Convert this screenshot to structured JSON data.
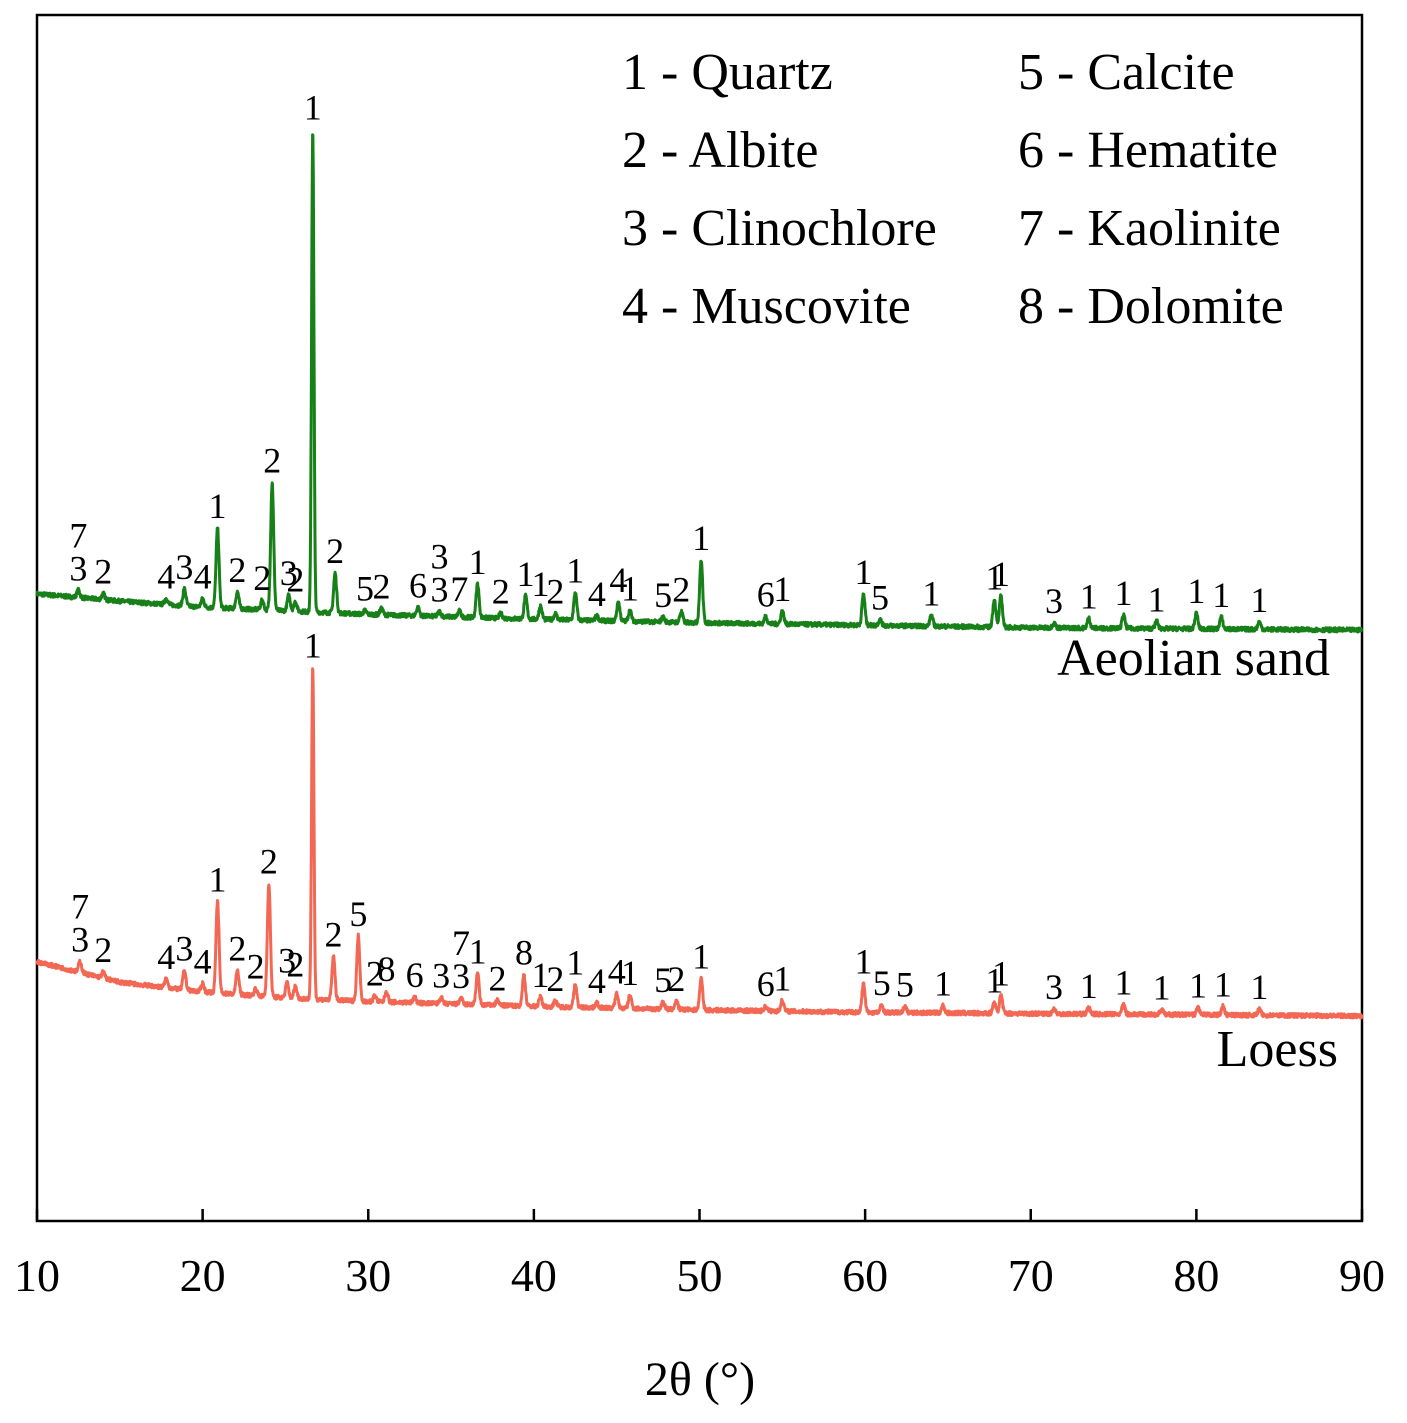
{
  "chart_data": {
    "type": "line",
    "title": "",
    "xlabel": "2θ (°)",
    "ylabel": "",
    "xlim": [
      10,
      90
    ],
    "ylim": [
      0,
      100
    ],
    "xticks": [
      {
        "value": 10,
        "label": "10"
      },
      {
        "value": 20,
        "label": "20"
      },
      {
        "value": 30,
        "label": "30"
      },
      {
        "value": 40,
        "label": "40"
      },
      {
        "value": 50,
        "label": "50"
      },
      {
        "value": 60,
        "label": "60"
      },
      {
        "value": 70,
        "label": "70"
      },
      {
        "value": 80,
        "label": "80"
      },
      {
        "value": 90,
        "label": "90"
      }
    ],
    "legend": {
      "placement": "top-right",
      "entries": [
        "1 - Quartz",
        "5 - Calcite",
        "2 - Albite",
        "6 - Hematite",
        "3 - Clinochlore",
        "7 - Kaolinite",
        "4 - Muscovite",
        "8 - Dolomite"
      ]
    },
    "series": [
      {
        "name": "Aeolian sand",
        "color": "#188018",
        "baseline": {
          "x": [
            10,
            15,
            20,
            25,
            30,
            40,
            50,
            60,
            70,
            80,
            90
          ],
          "y": [
            52,
            51.4,
            50.9,
            50.6,
            50.3,
            49.9,
            49.6,
            49.4,
            49.2,
            49.1,
            49
          ]
        },
        "peaks": [
          {
            "x": 12.5,
            "h": 0.6,
            "label": "7\n3"
          },
          {
            "x": 14.0,
            "h": 0.5,
            "label": "2"
          },
          {
            "x": 17.8,
            "h": 0.5,
            "label": "4"
          },
          {
            "x": 18.9,
            "h": 1.4,
            "label": "3"
          },
          {
            "x": 20.0,
            "h": 0.7,
            "label": "4"
          },
          {
            "x": 20.9,
            "h": 6.6,
            "label": "1"
          },
          {
            "x": 22.1,
            "h": 1.4,
            "label": "2"
          },
          {
            "x": 23.6,
            "h": 0.8,
            "label": "2"
          },
          {
            "x": 24.2,
            "h": 10.6,
            "label": "2"
          },
          {
            "x": 25.2,
            "h": 1.3,
            "label": "3"
          },
          {
            "x": 25.6,
            "h": 0.8,
            "label": "2"
          },
          {
            "x": 26.65,
            "h": 40,
            "label": "1"
          },
          {
            "x": 28.0,
            "h": 3.3,
            "label": "2"
          },
          {
            "x": 29.8,
            "h": 0.3,
            "label": "5"
          },
          {
            "x": 30.8,
            "h": 0.5,
            "label": "2"
          },
          {
            "x": 33.0,
            "h": 0.7,
            "label": "6"
          },
          {
            "x": 34.3,
            "h": 0.4,
            "label": "3\n3"
          },
          {
            "x": 35.5,
            "h": 0.5,
            "label": "7"
          },
          {
            "x": 36.6,
            "h": 2.8,
            "label": "1"
          },
          {
            "x": 38.0,
            "h": 0.4,
            "label": "2"
          },
          {
            "x": 39.5,
            "h": 1.9,
            "label": "1"
          },
          {
            "x": 40.4,
            "h": 1.1,
            "label": "1"
          },
          {
            "x": 41.3,
            "h": 0.5,
            "label": "2"
          },
          {
            "x": 42.5,
            "h": 2.3,
            "label": "1"
          },
          {
            "x": 43.8,
            "h": 0.4,
            "label": "4"
          },
          {
            "x": 45.1,
            "h": 1.6,
            "label": "4"
          },
          {
            "x": 45.8,
            "h": 0.9,
            "label": "1"
          },
          {
            "x": 47.8,
            "h": 0.4,
            "label": "5"
          },
          {
            "x": 48.9,
            "h": 0.9,
            "label": "2"
          },
          {
            "x": 50.1,
            "h": 5.2,
            "label": "1"
          },
          {
            "x": 54.0,
            "h": 0.6,
            "label": "6"
          },
          {
            "x": 55.0,
            "h": 1.1,
            "label": "1"
          },
          {
            "x": 59.9,
            "h": 2.6,
            "label": "1"
          },
          {
            "x": 60.9,
            "h": 0.5,
            "label": "5"
          },
          {
            "x": 64.0,
            "h": 0.9,
            "label": "1"
          },
          {
            "x": 67.8,
            "h": 2.3,
            "label": "1"
          },
          {
            "x": 68.2,
            "h": 2.6,
            "label": "1"
          },
          {
            "x": 71.4,
            "h": 0.4,
            "label": "3"
          },
          {
            "x": 73.5,
            "h": 0.8,
            "label": "1"
          },
          {
            "x": 75.6,
            "h": 1.1,
            "label": "1"
          },
          {
            "x": 77.6,
            "h": 0.6,
            "label": "1"
          },
          {
            "x": 80.0,
            "h": 1.3,
            "label": "1"
          },
          {
            "x": 81.5,
            "h": 1.0,
            "label": "1"
          },
          {
            "x": 83.8,
            "h": 0.6,
            "label": "1"
          }
        ]
      },
      {
        "name": "Loess",
        "color": "#f36854",
        "baseline": {
          "x": [
            10,
            15,
            20,
            25,
            30,
            40,
            50,
            60,
            70,
            80,
            90
          ],
          "y": [
            21.5,
            19.8,
            19.0,
            18.5,
            18.2,
            17.8,
            17.5,
            17.3,
            17.2,
            17.1,
            17.0
          ]
        },
        "peaks": [
          {
            "x": 12.6,
            "h": 0.9,
            "label": "7\n3"
          },
          {
            "x": 14.0,
            "h": 0.5,
            "label": "2"
          },
          {
            "x": 17.8,
            "h": 0.7,
            "label": "4"
          },
          {
            "x": 18.9,
            "h": 1.6,
            "label": "3"
          },
          {
            "x": 20.0,
            "h": 0.7,
            "label": "4"
          },
          {
            "x": 20.9,
            "h": 7.6,
            "label": "1"
          },
          {
            "x": 22.1,
            "h": 2.0,
            "label": "2"
          },
          {
            "x": 23.2,
            "h": 0.6,
            "label": "2"
          },
          {
            "x": 24.0,
            "h": 9.4,
            "label": "2"
          },
          {
            "x": 25.1,
            "h": 1.3,
            "label": "3"
          },
          {
            "x": 25.6,
            "h": 1.0,
            "label": "2"
          },
          {
            "x": 26.65,
            "h": 27.5,
            "label": "1"
          },
          {
            "x": 27.9,
            "h": 3.6,
            "label": "2"
          },
          {
            "x": 29.4,
            "h": 5.4,
            "label": "5"
          },
          {
            "x": 30.4,
            "h": 0.5,
            "label": "2"
          },
          {
            "x": 31.1,
            "h": 0.9,
            "label": "8"
          },
          {
            "x": 32.8,
            "h": 0.5,
            "label": "6"
          },
          {
            "x": 34.4,
            "h": 0.5,
            "label": "3"
          },
          {
            "x": 35.6,
            "h": 0.5,
            "label": "7\n3"
          },
          {
            "x": 36.6,
            "h": 2.6,
            "label": "1"
          },
          {
            "x": 37.8,
            "h": 0.4,
            "label": "2"
          },
          {
            "x": 39.4,
            "h": 2.6,
            "label": "8"
          },
          {
            "x": 40.4,
            "h": 0.8,
            "label": "1"
          },
          {
            "x": 41.3,
            "h": 0.5,
            "label": "2"
          },
          {
            "x": 42.5,
            "h": 1.9,
            "label": "1"
          },
          {
            "x": 43.8,
            "h": 0.4,
            "label": "4"
          },
          {
            "x": 45.0,
            "h": 1.2,
            "label": "4"
          },
          {
            "x": 45.8,
            "h": 1.1,
            "label": "1"
          },
          {
            "x": 47.8,
            "h": 0.6,
            "label": "5"
          },
          {
            "x": 48.6,
            "h": 0.7,
            "label": "2"
          },
          {
            "x": 50.1,
            "h": 2.6,
            "label": "1"
          },
          {
            "x": 54.0,
            "h": 0.4,
            "label": "6"
          },
          {
            "x": 55.0,
            "h": 0.9,
            "label": "1"
          },
          {
            "x": 59.9,
            "h": 2.4,
            "label": "1"
          },
          {
            "x": 61.0,
            "h": 0.6,
            "label": "5"
          },
          {
            "x": 62.4,
            "h": 0.5,
            "label": "5"
          },
          {
            "x": 64.7,
            "h": 0.6,
            "label": "1"
          },
          {
            "x": 67.8,
            "h": 0.9,
            "label": "1"
          },
          {
            "x": 68.2,
            "h": 1.5,
            "label": "1"
          },
          {
            "x": 71.4,
            "h": 0.4,
            "label": "3"
          },
          {
            "x": 73.5,
            "h": 0.5,
            "label": "1"
          },
          {
            "x": 75.6,
            "h": 0.8,
            "label": "1"
          },
          {
            "x": 77.9,
            "h": 0.4,
            "label": "1"
          },
          {
            "x": 80.1,
            "h": 0.6,
            "label": "1"
          },
          {
            "x": 81.6,
            "h": 0.7,
            "label": "1"
          },
          {
            "x": 83.8,
            "h": 0.5,
            "label": "1"
          }
        ]
      }
    ]
  }
}
